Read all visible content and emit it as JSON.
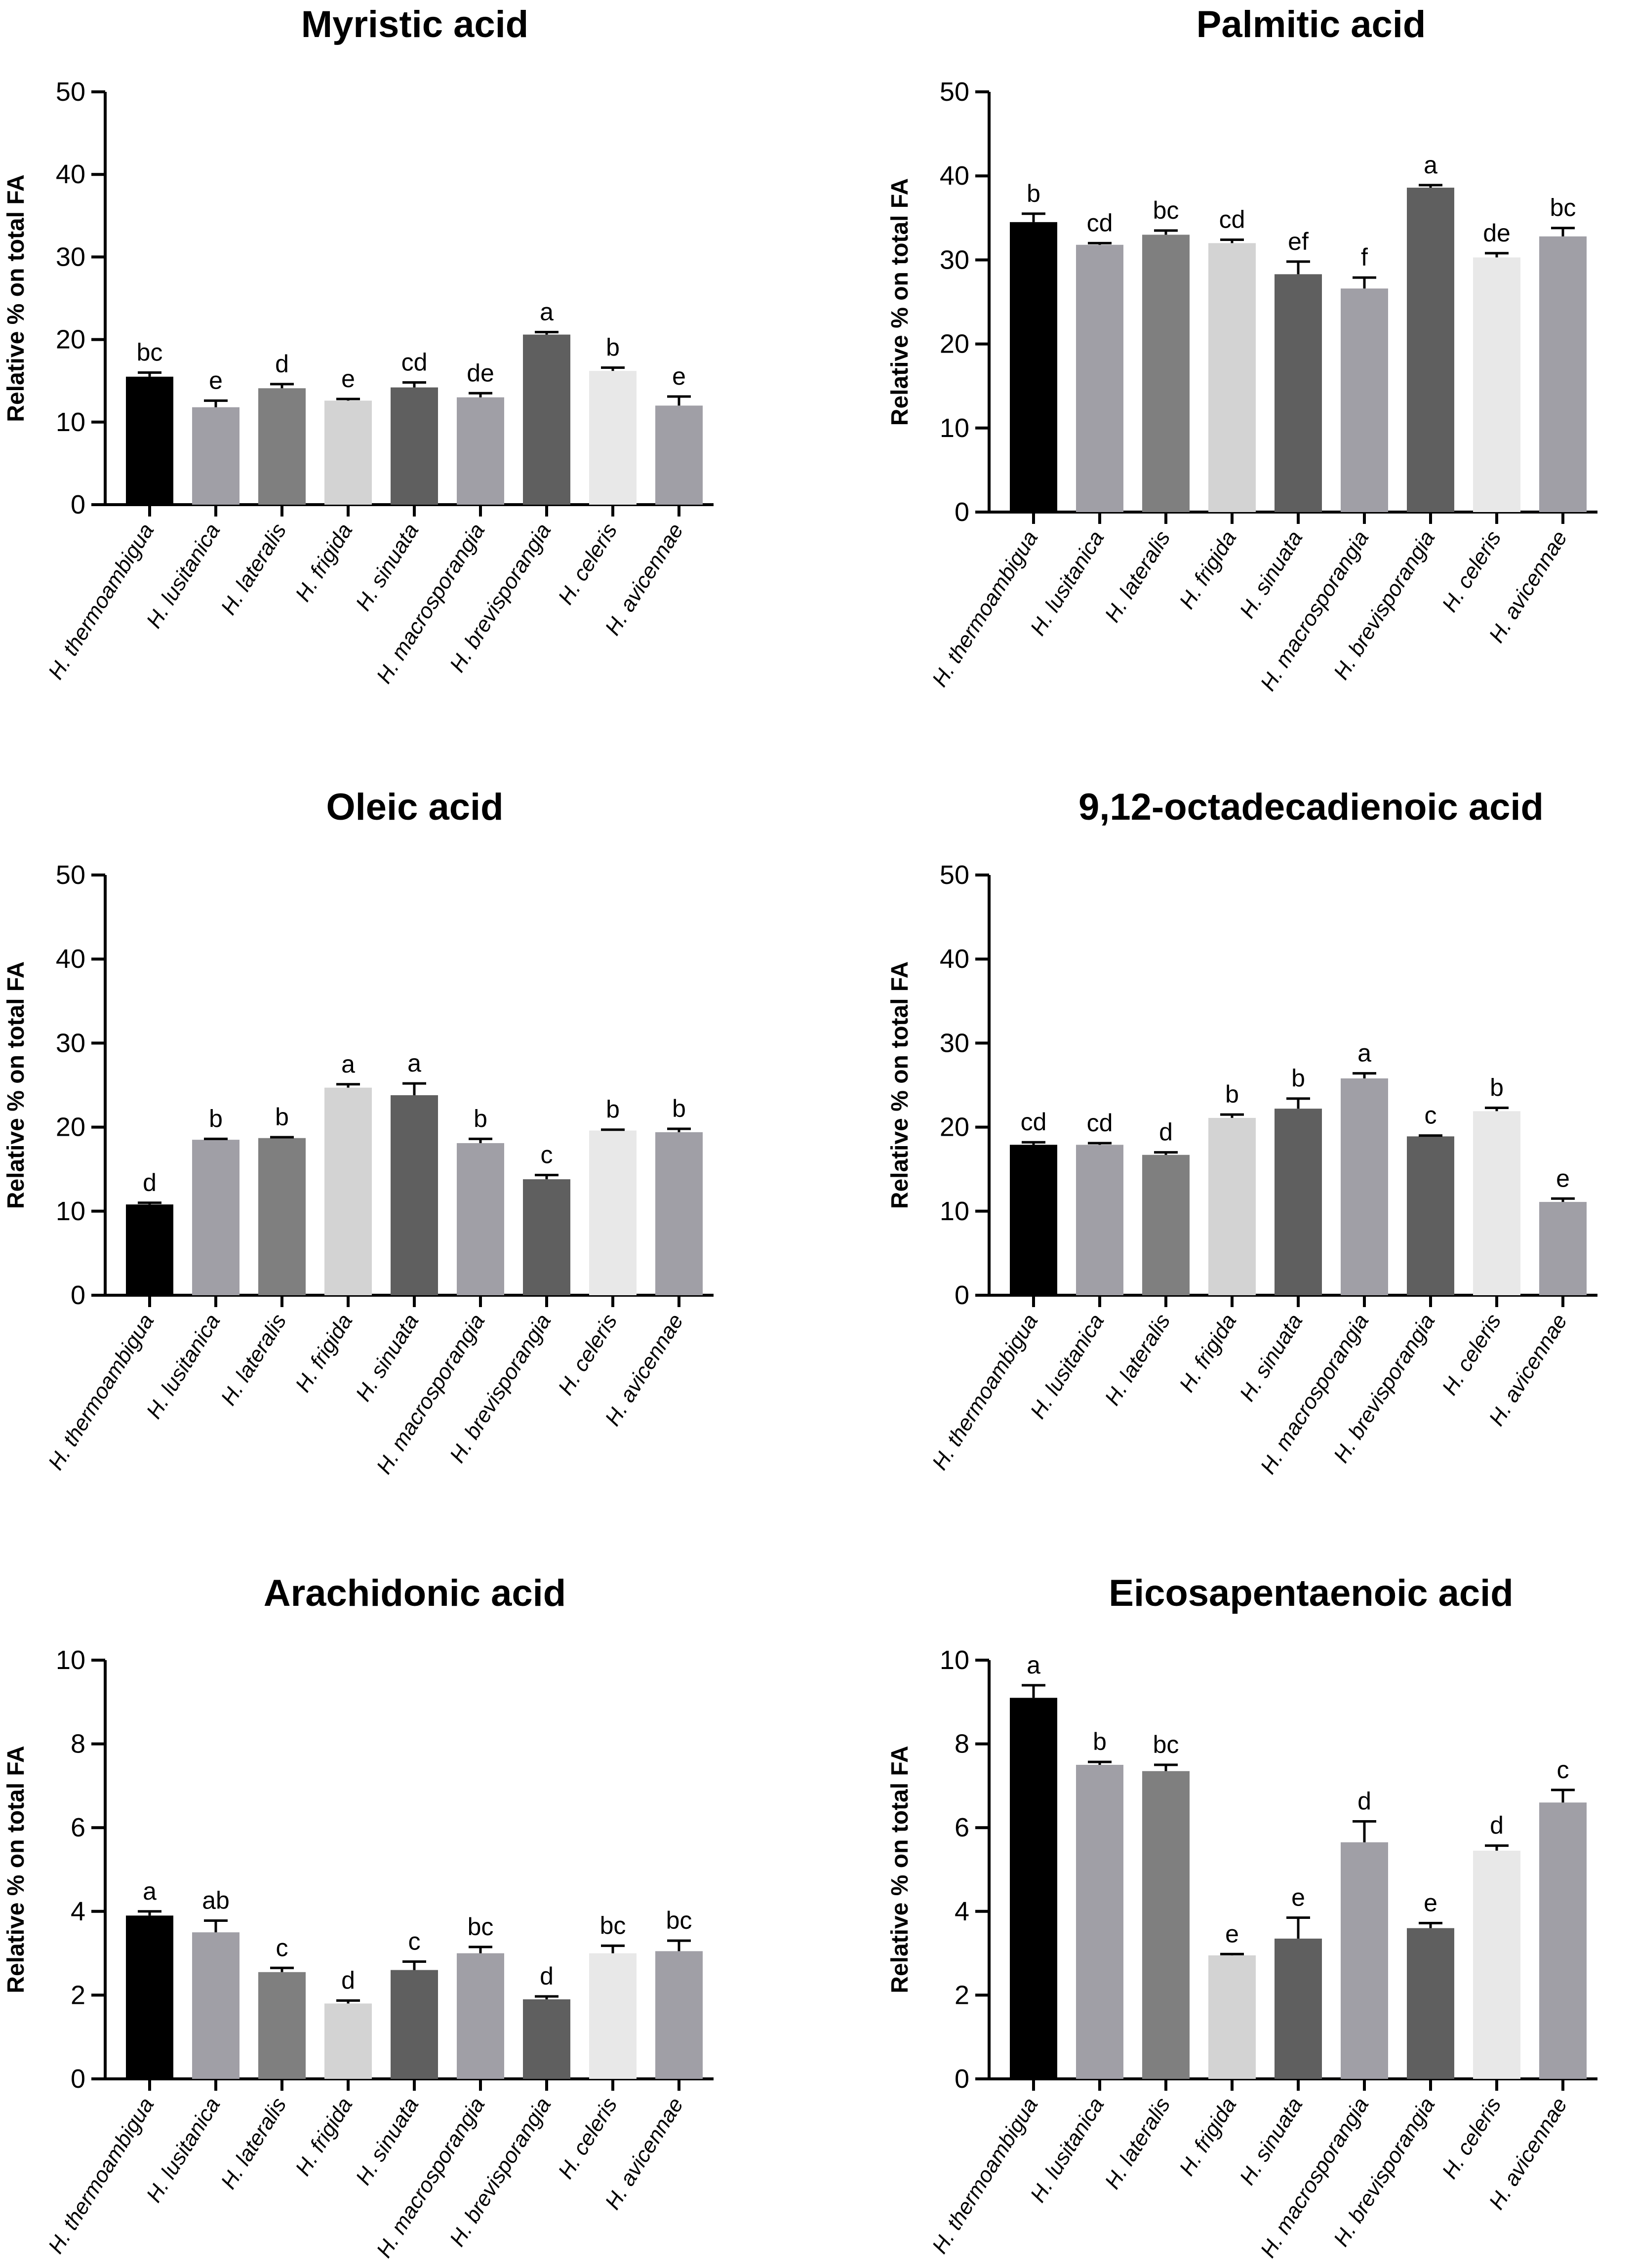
{
  "chart_data": [
    {
      "type": "bar",
      "title": "Myristic acid",
      "ylabel": "Relative % on total FA",
      "xlabel": "",
      "ylim": [
        0,
        50
      ],
      "yticks": [
        "0",
        "10",
        "20",
        "30",
        "40",
        "50"
      ],
      "ytick_values": [
        0,
        10,
        20,
        30,
        40,
        50
      ],
      "categories": [
        "H. thermoambigua",
        "H. lusitanica",
        "H. lateralis",
        "H. frigida",
        "H. sinuata",
        "H. macrosporangia",
        "H. brevisporangia",
        "H. celeris",
        "H. avicennae"
      ],
      "values": [
        15.5,
        11.8,
        14.1,
        12.6,
        14.2,
        13.0,
        20.6,
        16.2,
        12.0
      ],
      "errors": [
        0.5,
        0.8,
        0.5,
        0.2,
        0.6,
        0.5,
        0.3,
        0.4,
        1.1
      ],
      "letters": [
        "bc",
        "e",
        "d",
        "e",
        "cd",
        "de",
        "a",
        "b",
        "e"
      ]
    },
    {
      "type": "bar",
      "title": "Palmitic acid",
      "ylabel": "Relative % on total FA",
      "xlabel": "",
      "ylim": [
        0,
        50
      ],
      "yticks": [
        "0",
        "10",
        "20",
        "30",
        "40",
        "50"
      ],
      "ytick_values": [
        0,
        10,
        20,
        30,
        40,
        50
      ],
      "categories": [
        "H. thermoambigua",
        "H. lusitanica",
        "H. lateralis",
        "H. frigida",
        "H. sinuata",
        "H. macrosporangia",
        "H. brevisporangia",
        "H. celeris",
        "H. avicennae"
      ],
      "values": [
        34.5,
        31.8,
        33.0,
        32.0,
        28.3,
        26.6,
        38.6,
        30.3,
        32.8
      ],
      "errors": [
        1.0,
        0.2,
        0.5,
        0.4,
        1.5,
        1.3,
        0.3,
        0.5,
        1.0
      ],
      "letters": [
        "b",
        "cd",
        "bc",
        "cd",
        "ef",
        "f",
        "a",
        "de",
        "bc"
      ]
    },
    {
      "type": "bar",
      "title": "Oleic acid",
      "ylabel": "Relative % on total FA",
      "xlabel": "",
      "ylim": [
        0,
        50
      ],
      "yticks": [
        "0",
        "10",
        "20",
        "30",
        "40",
        "50"
      ],
      "ytick_values": [
        0,
        10,
        20,
        30,
        40,
        50
      ],
      "categories": [
        "H. thermoambigua",
        "H. lusitanica",
        "H. lateralis",
        "H. frigida",
        "H. sinuata",
        "H. macrosporangia",
        "H. brevisporangia",
        "H. celeris",
        "H. avicennae"
      ],
      "values": [
        10.8,
        18.5,
        18.7,
        24.7,
        23.8,
        18.1,
        13.8,
        19.6,
        19.4
      ],
      "errors": [
        0.2,
        0.1,
        0.1,
        0.4,
        1.4,
        0.5,
        0.5,
        0.1,
        0.4
      ],
      "letters": [
        "d",
        "b",
        "b",
        "a",
        "a",
        "b",
        "c",
        "b",
        "b"
      ]
    },
    {
      "type": "bar",
      "title": "9,12-octadecadienoic acid",
      "ylabel": "Relative % on total FA",
      "xlabel": "",
      "ylim": [
        0,
        50
      ],
      "yticks": [
        "0",
        "10",
        "20",
        "30",
        "40",
        "50"
      ],
      "ytick_values": [
        0,
        10,
        20,
        30,
        40,
        50
      ],
      "categories": [
        "H. thermoambigua",
        "H. lusitanica",
        "H. lateralis",
        "H. frigida",
        "H. sinuata",
        "H. macrosporangia",
        "H. brevisporangia",
        "H. celeris",
        "H. avicennae"
      ],
      "values": [
        17.9,
        17.9,
        16.7,
        21.1,
        22.2,
        25.8,
        18.9,
        21.9,
        11.1
      ],
      "errors": [
        0.3,
        0.2,
        0.3,
        0.4,
        1.2,
        0.6,
        0.1,
        0.4,
        0.4
      ],
      "letters": [
        "cd",
        "cd",
        "d",
        "b",
        "b",
        "a",
        "c",
        "b",
        "e"
      ]
    },
    {
      "type": "bar",
      "title": "Arachidonic acid",
      "ylabel": "Relative % on total FA",
      "xlabel": "",
      "ylim": [
        0,
        10
      ],
      "yticks": [
        "0",
        "2",
        "4",
        "6",
        "8",
        "10"
      ],
      "ytick_values": [
        0,
        2,
        4,
        6,
        8,
        10
      ],
      "categories": [
        "H. thermoambigua",
        "H. lusitanica",
        "H. lateralis",
        "H. frigida",
        "H. sinuata",
        "H. macrosporangia",
        "H. brevisporangia",
        "H. celeris",
        "H. avicennae"
      ],
      "values": [
        3.9,
        3.5,
        2.55,
        1.8,
        2.6,
        3.0,
        1.9,
        3.0,
        3.05
      ],
      "errors": [
        0.1,
        0.28,
        0.1,
        0.07,
        0.2,
        0.15,
        0.07,
        0.18,
        0.25
      ],
      "letters": [
        "a",
        "ab",
        "c",
        "d",
        "c",
        "bc",
        "d",
        "bc",
        "bc"
      ]
    },
    {
      "type": "bar",
      "title": "Eicosapentaenoic acid",
      "ylabel": "Relative % on total FA",
      "xlabel": "",
      "ylim": [
        0,
        10
      ],
      "yticks": [
        "0",
        "2",
        "4",
        "6",
        "8",
        "10"
      ],
      "ytick_values": [
        0,
        2,
        4,
        6,
        8,
        10
      ],
      "categories": [
        "H. thermoambigua",
        "H. lusitanica",
        "H. lateralis",
        "H. frigida",
        "H. sinuata",
        "H. macrosporangia",
        "H. brevisporangia",
        "H. celeris",
        "H. avicennae"
      ],
      "values": [
        9.1,
        7.5,
        7.35,
        2.95,
        3.35,
        5.65,
        3.6,
        5.45,
        6.6
      ],
      "errors": [
        0.3,
        0.07,
        0.15,
        0.03,
        0.5,
        0.5,
        0.12,
        0.12,
        0.3
      ],
      "letters": [
        "a",
        "b",
        "bc",
        "e",
        "e",
        "d",
        "e",
        "d",
        "c"
      ]
    }
  ],
  "colors": {
    "bars": [
      "#000000",
      "#a09fa6",
      "#7f7f7f",
      "#d3d3d3",
      "#5f5f5f",
      "#a09fa6",
      "#5f5f5f",
      "#e8e8e8",
      "#a09fa6"
    ],
    "axis": "#000000",
    "background": "#ffffff"
  }
}
